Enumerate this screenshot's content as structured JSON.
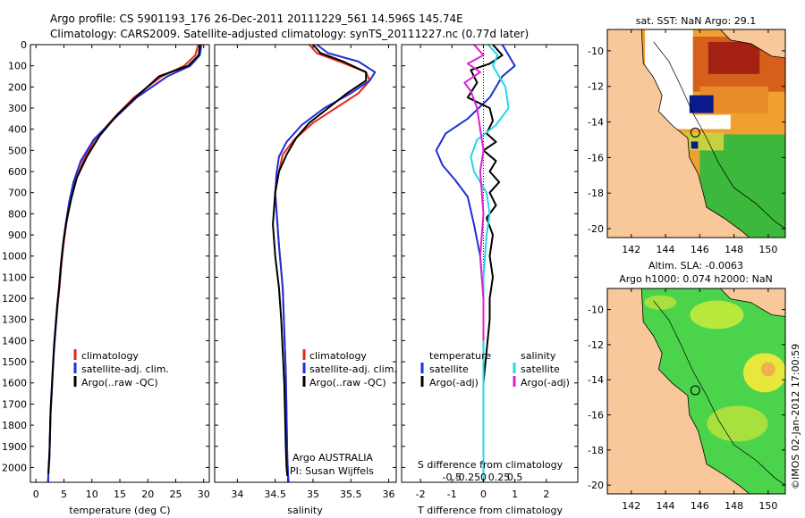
{
  "header": {
    "title_line1": "Argo profile: CS 5901193_176 26-Dec-2011 20111229_561 14.596S 145.74E",
    "title_line2": "Climatology: CARS2009. Satellite-adjusted climatology: synTS_20111227.nc (0.77d later)"
  },
  "colors": {
    "climatology": "#e8261c",
    "satellite": "#1d2fd6",
    "argo": "#000000",
    "satellite_salinity": "#22d8e8",
    "argo_salinity": "#e020d0",
    "land": "#f9c89a",
    "sst_white": "#ffffff",
    "sla_green": "#4bd44b"
  },
  "chart_data": [
    {
      "id": "temperature",
      "type": "line",
      "xlabel": "temperature (deg C)",
      "xlim": [
        -1,
        31
      ],
      "xticks": [
        0,
        5,
        10,
        15,
        20,
        25,
        30
      ],
      "ylim": [
        2070,
        0
      ],
      "yticks": [
        0,
        100,
        200,
        300,
        400,
        500,
        600,
        700,
        800,
        900,
        1000,
        1100,
        1200,
        1300,
        1400,
        1500,
        1600,
        1700,
        1800,
        1900,
        2000
      ],
      "legend": [
        "climatology",
        "satellite-adj. clim.",
        "Argo(..raw -QC)"
      ],
      "series": [
        {
          "name": "climatology",
          "color_key": "climatology",
          "x": [
            29.0,
            28.5,
            26.5,
            22.5,
            17.5,
            13.8,
            10.5,
            8.4,
            7.0,
            6.1,
            5.4,
            4.9,
            4.5,
            4.2,
            3.8,
            3.5,
            3.2,
            3.0,
            2.8,
            2.6,
            2.5,
            2.4,
            2.3,
            2.2,
            2.1
          ],
          "y": [
            0,
            50,
            100,
            150,
            250,
            350,
            450,
            550,
            650,
            750,
            850,
            950,
            1050,
            1150,
            1250,
            1350,
            1450,
            1550,
            1650,
            1750,
            1850,
            1950,
            2000,
            2040,
            2070
          ]
        },
        {
          "name": "satellite-adj. clim.",
          "color_key": "satellite",
          "x": [
            29.6,
            29.3,
            27.6,
            23.5,
            18.0,
            14.0,
            10.3,
            8.0,
            6.7,
            5.9,
            5.3,
            4.8,
            4.4,
            4.1,
            3.8,
            3.5,
            3.2,
            3.0,
            2.8,
            2.6,
            2.5,
            2.4,
            2.3,
            2.2,
            2.2
          ],
          "y": [
            0,
            50,
            100,
            150,
            250,
            350,
            450,
            550,
            650,
            750,
            850,
            950,
            1050,
            1150,
            1250,
            1350,
            1450,
            1550,
            1650,
            1750,
            1850,
            1950,
            2000,
            2040,
            2070
          ]
        },
        {
          "name": "Argo(..raw -QC)",
          "color_key": "argo",
          "x": [
            29.3,
            29.1,
            27.2,
            22.0,
            17.8,
            14.6,
            11.4,
            9.1,
            7.3,
            6.3,
            5.5,
            4.9,
            4.5,
            4.2,
            3.8,
            3.5,
            3.2,
            3.0,
            2.8,
            2.6,
            2.5,
            2.4,
            2.3,
            2.2
          ],
          "y": [
            0,
            50,
            100,
            150,
            250,
            330,
            430,
            530,
            630,
            730,
            830,
            930,
            1030,
            1130,
            1230,
            1330,
            1430,
            1530,
            1630,
            1730,
            1830,
            1930,
            1980,
            2030
          ]
        }
      ]
    },
    {
      "id": "salinity",
      "type": "line",
      "xlabel": "salinity",
      "xlim": [
        33.7,
        36.1
      ],
      "xticks": [
        34,
        34.5,
        35,
        35.5,
        36
      ],
      "xtick_labels": [
        "34",
        "34.5",
        "35",
        "35.5",
        "36"
      ],
      "ylim": [
        2070,
        0
      ],
      "legend": [
        "climatology",
        "satellite-adj. clim.",
        "Argo(..raw -QC)"
      ],
      "annotation_line1": "Argo AUSTRALIA",
      "annotation_line2": "PI: Susan Wijffels",
      "series": [
        {
          "name": "climatology",
          "color_key": "climatology",
          "x": [
            34.95,
            35.05,
            35.35,
            35.7,
            35.75,
            35.6,
            35.3,
            35.0,
            34.75,
            34.6,
            34.55,
            34.5,
            34.52,
            34.55,
            34.6,
            34.62,
            34.64,
            34.65,
            34.66,
            34.67,
            34.68
          ],
          "y": [
            0,
            40,
            80,
            130,
            170,
            230,
            300,
            370,
            450,
            520,
            600,
            700,
            800,
            950,
            1150,
            1350,
            1550,
            1750,
            1950,
            2030,
            2070
          ]
        },
        {
          "name": "satellite-adj. clim.",
          "color_key": "satellite",
          "x": [
            35.05,
            35.2,
            35.6,
            35.82,
            35.75,
            35.5,
            35.15,
            34.85,
            34.65,
            34.55,
            34.52,
            34.5,
            34.52,
            34.55,
            34.6,
            34.62,
            34.64,
            34.65,
            34.66,
            34.67,
            34.67
          ],
          "y": [
            0,
            40,
            80,
            130,
            170,
            230,
            300,
            380,
            460,
            530,
            600,
            700,
            800,
            950,
            1150,
            1350,
            1550,
            1750,
            1950,
            2030,
            2070
          ]
        },
        {
          "name": "Argo(..raw -QC)",
          "color_key": "argo",
          "x": [
            35.0,
            35.1,
            35.4,
            35.7,
            35.7,
            35.45,
            35.2,
            34.95,
            34.78,
            34.65,
            34.55,
            34.5,
            34.47,
            34.5,
            34.55,
            34.58,
            34.6,
            34.62,
            34.63,
            34.64,
            34.65,
            34.66
          ],
          "y": [
            0,
            40,
            80,
            130,
            170,
            230,
            300,
            370,
            440,
            520,
            600,
            700,
            850,
            1000,
            1150,
            1300,
            1450,
            1600,
            1750,
            1900,
            2000,
            2040
          ]
        }
      ]
    },
    {
      "id": "difference",
      "type": "line",
      "xlabel": "T difference from climatology",
      "top_label": "S difference from climatology",
      "xlim": [
        -2.6,
        3.0
      ],
      "xticks": [
        -2,
        -1,
        0,
        1,
        2
      ],
      "xtick_labels": [
        "-2",
        "-1",
        "0",
        "1",
        "2"
      ],
      "sticks_pos": [
        -2,
        -1,
        0,
        1,
        2
      ],
      "sticks_labels": [
        "-0.5",
        "-0.25",
        "0",
        "0.25",
        "0.5"
      ],
      "ylim": [
        2070,
        0
      ],
      "legend_temperature": "temperature",
      "legend_salinity": "salinity",
      "legend_items": [
        "satellite",
        "Argo(-adj)",
        "satellite",
        "Argo(-adj)"
      ],
      "series": [
        {
          "name": "satellite",
          "color_key": "satellite",
          "x": [
            0.6,
            0.8,
            1.0,
            0.6,
            0.2,
            -0.5,
            -1.2,
            -1.5,
            -1.3,
            -0.9,
            -0.5,
            -0.3,
            -0.1,
            0.0,
            0.0,
            0.0,
            0.0,
            0.0
          ],
          "y": [
            0,
            50,
            100,
            150,
            250,
            350,
            420,
            500,
            570,
            640,
            720,
            850,
            1000,
            1200,
            1400,
            1700,
            1900,
            2070
          ]
        },
        {
          "name": "Argo(-adj)",
          "color_key": "argo",
          "x": [
            0.3,
            0.6,
            0.2,
            -0.4,
            -0.2,
            -0.5,
            0.2,
            0.3,
            0.1,
            0.4,
            0.0,
            0.4,
            0.2,
            0.5,
            0.2,
            0.4,
            0.1,
            0.3,
            0.2,
            0.3,
            0.2,
            0.2,
            0.1,
            0.0,
            0.0,
            0.0
          ],
          "y": [
            0,
            50,
            90,
            120,
            180,
            250,
            300,
            360,
            420,
            460,
            500,
            550,
            600,
            650,
            700,
            760,
            820,
            900,
            1000,
            1100,
            1200,
            1300,
            1450,
            1600,
            1800,
            2030
          ]
        }
      ],
      "series_salinity": [
        {
          "name": "satellite",
          "color_key": "satellite_salinity",
          "x": [
            0.15,
            0.45,
            0.3,
            0.7,
            0.8,
            0.4,
            -0.2,
            -0.4,
            -0.3,
            0.1,
            0.2,
            0.1,
            0.0,
            0.0,
            0.0,
            0.0
          ],
          "y": [
            0,
            50,
            100,
            200,
            300,
            380,
            450,
            530,
            600,
            700,
            800,
            900,
            1100,
            1400,
            1700,
            2070
          ]
        },
        {
          "name": "Argo(-adj)",
          "color_key": "argo_salinity",
          "x": [
            -0.3,
            0.0,
            -0.5,
            -0.1,
            -0.6,
            -0.4,
            -0.2,
            -0.1,
            0.0,
            -0.1,
            0.0,
            -0.1,
            0.0,
            0.0
          ],
          "y": [
            0,
            50,
            90,
            130,
            180,
            220,
            300,
            400,
            500,
            600,
            800,
            1000,
            1200,
            1400
          ]
        }
      ]
    },
    {
      "id": "sst_map",
      "type": "heatmap",
      "title": "sat. SST: NaN Argo: 29.1",
      "xlim": [
        140.6,
        151.0
      ],
      "ylim": [
        -20.5,
        -8.8
      ],
      "xticks": [
        142,
        144,
        146,
        148,
        150
      ],
      "yticks": [
        -10,
        -12,
        -14,
        -16,
        -18,
        -20
      ],
      "argo_marker": {
        "lon": 145.74,
        "lat": -14.596
      }
    },
    {
      "id": "sla_map",
      "type": "heatmap",
      "title_line1": "Altim. SLA: -0.0063",
      "title_line2": "Argo h1000: 0.074 h2000: NaN",
      "xlim": [
        140.6,
        151.0
      ],
      "ylim": [
        -20.5,
        -8.8
      ],
      "xticks": [
        142,
        144,
        146,
        148,
        150
      ],
      "yticks": [
        -10,
        -12,
        -14,
        -16,
        -18,
        -20
      ],
      "argo_marker": {
        "lon": 145.74,
        "lat": -14.596
      }
    }
  ],
  "credit": "©IMOS 02-Jan-2012 17:00:59"
}
